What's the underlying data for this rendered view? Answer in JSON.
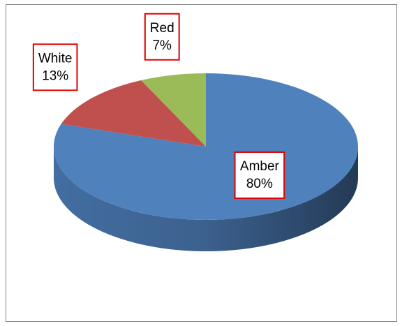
{
  "chart_data": {
    "type": "pie",
    "categories": [
      "Amber",
      "White",
      "Red"
    ],
    "values": [
      80,
      13,
      7
    ],
    "value_labels": [
      "80%",
      "13%",
      "7%"
    ],
    "colors": [
      "#4f81bd",
      "#c0504d",
      "#9bbb59"
    ]
  }
}
